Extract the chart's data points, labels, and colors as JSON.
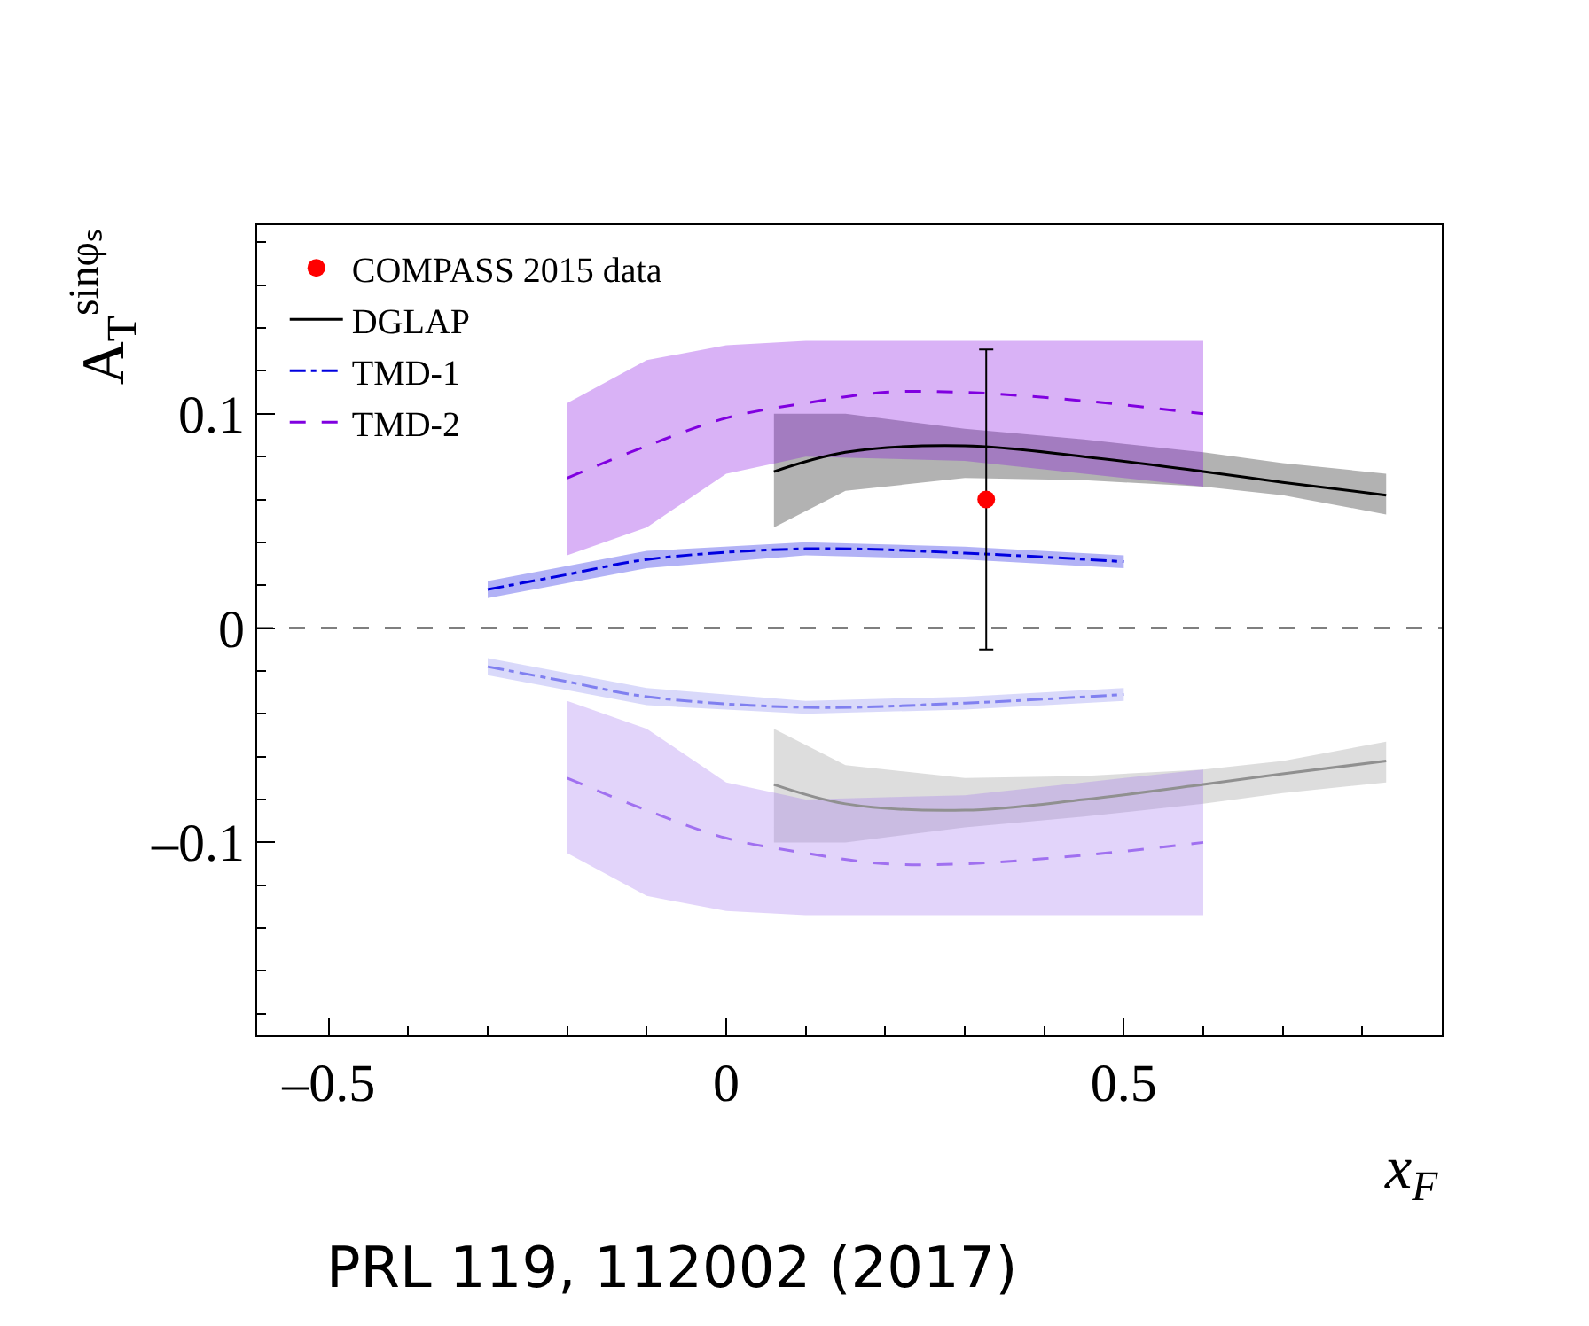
{
  "chart_data": {
    "type": "line",
    "xlabel": "x$_{F}$",
    "ylabel": "A$_{T}$$^{sinφₛ}$",
    "xlim": [
      -0.59,
      0.9
    ],
    "ylim": [
      -0.19,
      0.188
    ],
    "xticks": [
      {
        "value": -0.5,
        "label": "–0.5"
      },
      0,
      0.5
    ],
    "yticks": [
      {
        "value": -0.1,
        "label": "–0.1"
      },
      0,
      0.1
    ],
    "legend": "top left",
    "ref_lines": [
      {
        "axis": "y",
        "value": 0,
        "color": "#000000",
        "line_style": "dashed"
      }
    ],
    "annotations": [
      "PRL 119, 112002 (2017)"
    ],
    "series": [
      {
        "name": "COMPASS 2015 data",
        "type": "scatter",
        "marker": "circle",
        "color": "#ff0000",
        "x": [
          0.327
        ],
        "values": [
          0.06
        ],
        "errors": [
          0.07
        ]
      },
      {
        "name": "DGLAP",
        "color": "#000000",
        "line_style": "solid",
        "x": [
          0.06,
          0.15,
          0.3,
          0.45,
          0.6,
          0.7,
          0.83
        ],
        "values": [
          0.073,
          0.082,
          0.085,
          0.08,
          0.073,
          0.068,
          0.062
        ],
        "upper": [
          0.1,
          0.1,
          0.093,
          0.088,
          0.082,
          0.077,
          0.072
        ],
        "lower": [
          0.047,
          0.064,
          0.07,
          0.069,
          0.066,
          0.062,
          0.053
        ]
      },
      {
        "name": "TMD-1",
        "color": "#0000e0",
        "line_style": "dashdot",
        "x": [
          -0.3,
          -0.2,
          -0.1,
          0.1,
          0.3,
          0.5
        ],
        "values": [
          0.018,
          0.025,
          0.032,
          0.037,
          0.035,
          0.031
        ],
        "upper": [
          0.022,
          0.029,
          0.036,
          0.04,
          0.038,
          0.034
        ],
        "lower": [
          0.014,
          0.021,
          0.028,
          0.034,
          0.032,
          0.028
        ]
      },
      {
        "name": "TMD-2",
        "color": "#8000e0",
        "line_style": "dashed",
        "x": [
          -0.2,
          -0.1,
          0,
          0.1,
          0.2,
          0.3,
          0.45,
          0.6
        ],
        "values": [
          0.07,
          0.085,
          0.098,
          0.105,
          0.11,
          0.11,
          0.106,
          0.1
        ],
        "upper": [
          0.105,
          0.125,
          0.132,
          0.134,
          0.134,
          0.134,
          0.134,
          0.134
        ],
        "lower": [
          0.034,
          0.047,
          0.072,
          0.08,
          0.079,
          0.078,
          0.072,
          0.066
        ]
      },
      {
        "color": "#909090",
        "line_style": "solid",
        "x": [
          0.06,
          0.15,
          0.3,
          0.45,
          0.6,
          0.7,
          0.83
        ],
        "values": [
          -0.073,
          -0.082,
          -0.085,
          -0.08,
          -0.073,
          -0.068,
          -0.062
        ],
        "upper": [
          -0.047,
          -0.064,
          -0.07,
          -0.069,
          -0.066,
          -0.062,
          -0.053
        ],
        "lower": [
          -0.1,
          -0.1,
          -0.093,
          -0.088,
          -0.082,
          -0.077,
          -0.072
        ]
      },
      {
        "color": "#8080f0",
        "line_style": "dashdot",
        "x": [
          -0.3,
          -0.2,
          -0.1,
          0.1,
          0.3,
          0.5
        ],
        "values": [
          -0.018,
          -0.025,
          -0.032,
          -0.037,
          -0.035,
          -0.031
        ],
        "upper": [
          -0.014,
          -0.021,
          -0.028,
          -0.034,
          -0.032,
          -0.028
        ],
        "lower": [
          -0.022,
          -0.029,
          -0.036,
          -0.04,
          -0.038,
          -0.034
        ]
      },
      {
        "color": "#a070f0",
        "line_style": "dashed",
        "x": [
          -0.2,
          -0.1,
          0,
          0.1,
          0.2,
          0.3,
          0.45,
          0.6
        ],
        "values": [
          -0.07,
          -0.085,
          -0.098,
          -0.105,
          -0.11,
          -0.11,
          -0.106,
          -0.1
        ],
        "upper": [
          -0.034,
          -0.047,
          -0.072,
          -0.08,
          -0.079,
          -0.078,
          -0.072,
          -0.066
        ],
        "lower": [
          -0.105,
          -0.125,
          -0.132,
          -0.134,
          -0.134,
          -0.134,
          -0.134,
          -0.134
        ]
      }
    ]
  }
}
